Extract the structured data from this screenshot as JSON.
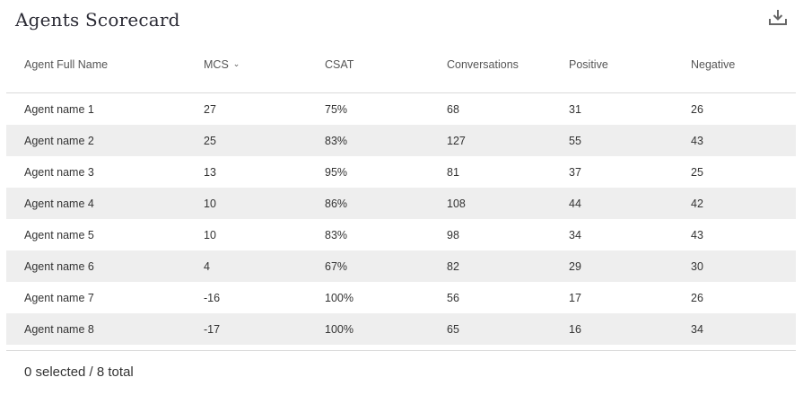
{
  "title": "Agents Scorecard",
  "download_icon": "download-icon",
  "columns": [
    "Agent Full Name",
    "MCS",
    "CSAT",
    "Conversations",
    "Positive",
    "Negative"
  ],
  "sort": {
    "column": "MCS",
    "direction": "descending",
    "indicator": "⌄"
  },
  "rows": [
    [
      "Agent name 1",
      "27",
      "75%",
      "68",
      "31",
      "26"
    ],
    [
      "Agent name 2",
      "25",
      "83%",
      "127",
      "55",
      "43"
    ],
    [
      "Agent name 3",
      "13",
      "95%",
      "81",
      "37",
      "25"
    ],
    [
      "Agent name 4",
      "10",
      "86%",
      "108",
      "44",
      "42"
    ],
    [
      "Agent name 5",
      "10",
      "83%",
      "98",
      "34",
      "43"
    ],
    [
      "Agent name 6",
      "4",
      "67%",
      "82",
      "29",
      "30"
    ],
    [
      "Agent name 7",
      "-16",
      "100%",
      "56",
      "17",
      "26"
    ],
    [
      "Agent name 8",
      "-17",
      "100%",
      "65",
      "16",
      "34"
    ]
  ],
  "footer": {
    "selection_text": "0 selected / 8 total"
  },
  "colors": {
    "stripe": "#eeeeee",
    "divider": "#d9d9d9",
    "title": "#2b2b35"
  }
}
